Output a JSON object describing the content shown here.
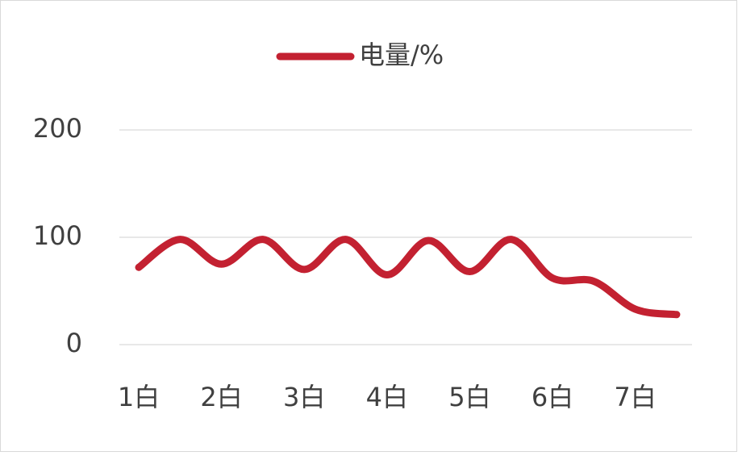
{
  "chart_data": {
    "type": "line",
    "legend_position": "top",
    "grid": true,
    "smooth": true,
    "categories": [
      "1白",
      null,
      "2白",
      null,
      "3白",
      null,
      "4白",
      null,
      "5白",
      null,
      "6白",
      null,
      "7白",
      null
    ],
    "series": [
      {
        "name": "电量/%",
        "color": "#c32131",
        "values": [
          72,
          98,
          75,
          98,
          70,
          98,
          65,
          97,
          68,
          98,
          62,
          59,
          33,
          28
        ]
      }
    ],
    "ylim": [
      0,
      200
    ],
    "yticks": [
      0,
      100,
      200
    ]
  }
}
